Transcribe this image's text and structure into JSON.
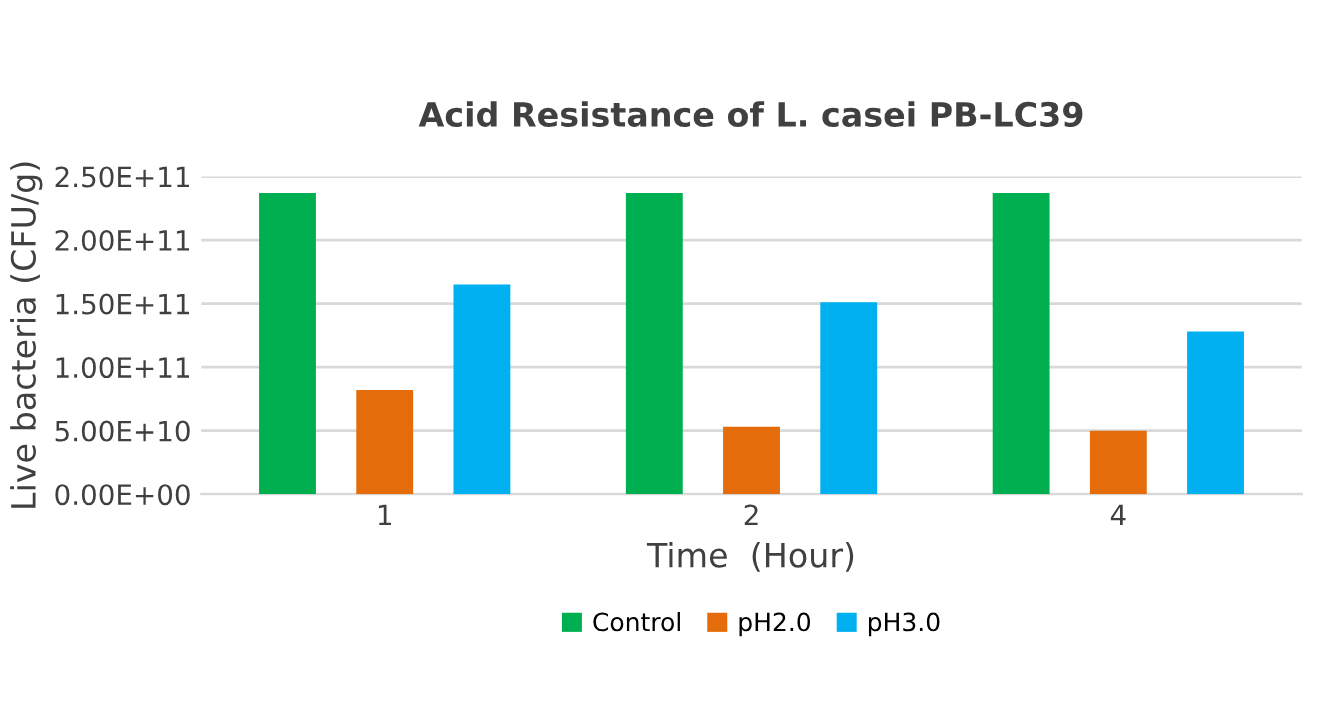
{
  "chart_data": {
    "type": "bar",
    "title": "Acid Resistance of L. casei PB-LC39",
    "xlabel": "Time  (Hour)",
    "ylabel": "Live bacteria (CFU/g)",
    "categories": [
      "1",
      "2",
      "4"
    ],
    "series": [
      {
        "name": "Control",
        "color": "#00b050",
        "values": [
          237000000000.0,
          237000000000.0,
          237000000000.0
        ]
      },
      {
        "name": "pH2.0",
        "color": "#e46c0a",
        "values": [
          82000000000.0,
          53000000000.0,
          50000000000.0
        ]
      },
      {
        "name": "pH3.0",
        "color": "#00b0f0",
        "values": [
          165000000000.0,
          151000000000.0,
          128000000000.0
        ]
      }
    ],
    "ylim": [
      0,
      250000000000.0
    ],
    "yticks": [
      {
        "value": 0,
        "label": "0.00E+00"
      },
      {
        "value": 50000000000.0,
        "label": "5.00E+10"
      },
      {
        "value": 100000000000.0,
        "label": "1.00E+11"
      },
      {
        "value": 150000000000.0,
        "label": "1.50E+11"
      },
      {
        "value": 200000000000.0,
        "label": "2.00E+11"
      },
      {
        "value": 250000000000.0,
        "label": "2.50E+11"
      }
    ],
    "grid": "y",
    "legend": "bottom"
  }
}
